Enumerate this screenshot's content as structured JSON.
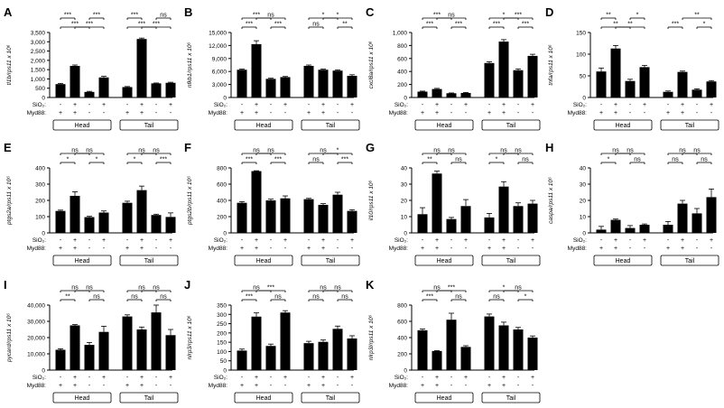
{
  "figure": {
    "row_labels": [
      "SiO₂:",
      "Myd88:"
    ],
    "group_labels": [
      "Head",
      "Tail"
    ],
    "conditions": [
      {
        "sio2": "-",
        "myd88": "+"
      },
      {
        "sio2": "+",
        "myd88": "+"
      },
      {
        "sio2": "-",
        "myd88": "-"
      },
      {
        "sio2": "+",
        "myd88": "-"
      }
    ],
    "sig_labels": {
      "ns": "ns",
      "s1": "*",
      "s2": "**",
      "s3": "***"
    }
  },
  "chart_data": [
    {
      "type": "bar",
      "letter": "A",
      "ylabel": "tl1b/rps11 x 10⁶",
      "ylim": [
        0,
        3500
      ],
      "yticks": [
        0,
        500,
        1000,
        1500,
        2000,
        2500,
        3000,
        3500
      ],
      "categories": [
        "Head 1",
        "Head 2",
        "Head 3",
        "Head 4",
        "Tail 1",
        "Tail 2",
        "Tail 3",
        "Tail 4"
      ],
      "values": [
        720,
        1700,
        300,
        1080,
        560,
        3150,
        760,
        790
      ],
      "errors": [
        40,
        50,
        30,
        60,
        30,
        50,
        20,
        30
      ],
      "sig": [
        {
          "a": 0,
          "b": 2,
          "label": "***",
          "tier": 0
        },
        {
          "a": 1,
          "b": 3,
          "label": "***",
          "tier": 0
        },
        {
          "a": 0,
          "b": 1,
          "label": "***",
          "tier": 1
        },
        {
          "a": 2,
          "b": 3,
          "label": "***",
          "tier": 1
        },
        {
          "a": 4,
          "b": 6,
          "label": "***",
          "tier": 0
        },
        {
          "a": 5,
          "b": 7,
          "label": "***",
          "tier": 0
        },
        {
          "a": 4,
          "b": 5,
          "label": "***",
          "tier": 1
        },
        {
          "a": 6,
          "b": 7,
          "label": "ns",
          "tier": 1
        }
      ]
    },
    {
      "type": "bar",
      "letter": "B",
      "ylabel": "nfkb1/rps11 x 10⁶",
      "ylim": [
        0,
        15000
      ],
      "yticks": [
        0,
        3000,
        6000,
        9000,
        12000,
        15000
      ],
      "categories": [
        "Head 1",
        "Head 2",
        "Head 3",
        "Head 4",
        "Tail 1",
        "Tail 2",
        "Tail 3",
        "Tail 4"
      ],
      "values": [
        6400,
        12300,
        4300,
        4700,
        7300,
        6400,
        6200,
        5000
      ],
      "errors": [
        150,
        800,
        150,
        150,
        200,
        150,
        150,
        250
      ],
      "sig": [
        {
          "a": 0,
          "b": 1,
          "label": "***",
          "tier": 0
        },
        {
          "a": 2,
          "b": 3,
          "label": "***",
          "tier": 0
        },
        {
          "a": 0,
          "b": 2,
          "label": "***",
          "tier": 1
        },
        {
          "a": 1,
          "b": 3,
          "label": "ns",
          "tier": 1
        },
        {
          "a": 4,
          "b": 5,
          "label": "ns",
          "tier": 0
        },
        {
          "a": 6,
          "b": 7,
          "label": "**",
          "tier": 0
        },
        {
          "a": 4,
          "b": 6,
          "label": "*",
          "tier": 1
        },
        {
          "a": 5,
          "b": 7,
          "label": "*",
          "tier": 1
        }
      ]
    },
    {
      "type": "bar",
      "letter": "C",
      "ylabel": "cxcl8a/rps11 x 10⁶",
      "ylim": [
        0,
        1000
      ],
      "yticks": [
        0,
        200,
        400,
        600,
        800,
        1000
      ],
      "categories": [
        "Head 1",
        "Head 2",
        "Head 3",
        "Head 4",
        "Tail 1",
        "Tail 2",
        "Tail 3",
        "Tail 4"
      ],
      "values": [
        90,
        130,
        65,
        70,
        530,
        860,
        420,
        640
      ],
      "errors": [
        8,
        10,
        5,
        8,
        20,
        30,
        20,
        25
      ],
      "sig": [
        {
          "a": 0,
          "b": 1,
          "label": "***",
          "tier": 0
        },
        {
          "a": 2,
          "b": 3,
          "label": "***",
          "tier": 0
        },
        {
          "a": 0,
          "b": 2,
          "label": "***",
          "tier": 1
        },
        {
          "a": 1,
          "b": 3,
          "label": "ns",
          "tier": 1
        },
        {
          "a": 4,
          "b": 5,
          "label": "***",
          "tier": 0
        },
        {
          "a": 6,
          "b": 7,
          "label": "***",
          "tier": 0
        },
        {
          "a": 4,
          "b": 6,
          "label": "*",
          "tier": 1
        },
        {
          "a": 5,
          "b": 7,
          "label": "***",
          "tier": 1
        }
      ]
    },
    {
      "type": "bar",
      "letter": "D",
      "ylabel": "tnfa/rps11 x 10⁶",
      "ylim": [
        0,
        150
      ],
      "yticks": [
        0,
        50,
        100,
        150
      ],
      "categories": [
        "Head 1",
        "Head 2",
        "Head 3",
        "Head 4",
        "Tail 1",
        "Tail 2",
        "Tail 3",
        "Tail 4"
      ],
      "values": [
        60,
        113,
        38,
        70,
        13,
        59,
        18,
        37
      ],
      "errors": [
        8,
        7,
        4,
        4,
        2,
        2,
        2,
        2
      ],
      "sig": [
        {
          "a": 0,
          "b": 2,
          "label": "**",
          "tier": 0
        },
        {
          "a": 1,
          "b": 3,
          "label": "**",
          "tier": 0
        },
        {
          "a": 0,
          "b": 1,
          "label": "**",
          "tier": 1
        },
        {
          "a": 2,
          "b": 3,
          "label": "*",
          "tier": 1
        },
        {
          "a": 4,
          "b": 5,
          "label": "***",
          "tier": 0
        },
        {
          "a": 6,
          "b": 7,
          "label": "*",
          "tier": 0
        },
        {
          "a": 5,
          "b": 7,
          "label": "**",
          "tier": 1
        }
      ]
    },
    {
      "type": "bar",
      "letter": "E",
      "ylabel": "ptgs2a/rps11 x 10⁶",
      "ylim": [
        0,
        400
      ],
      "yticks": [
        0,
        100,
        200,
        300,
        400
      ],
      "categories": [
        "Head 1",
        "Head 2",
        "Head 3",
        "Head 4",
        "Tail 1",
        "Tail 2",
        "Tail 3",
        "Tail 4"
      ],
      "values": [
        135,
        228,
        97,
        125,
        185,
        263,
        110,
        98
      ],
      "errors": [
        5,
        25,
        5,
        10,
        10,
        25,
        5,
        25
      ],
      "sig": [
        {
          "a": 0,
          "b": 1,
          "label": "*",
          "tier": 0
        },
        {
          "a": 2,
          "b": 3,
          "label": "*",
          "tier": 0
        },
        {
          "a": 0,
          "b": 2,
          "label": "ns",
          "tier": 1
        },
        {
          "a": 1,
          "b": 3,
          "label": "ns",
          "tier": 1
        },
        {
          "a": 4,
          "b": 5,
          "label": "*",
          "tier": 0
        },
        {
          "a": 6,
          "b": 7,
          "label": "***",
          "tier": 0
        },
        {
          "a": 4,
          "b": 6,
          "label": "ns",
          "tier": 1
        },
        {
          "a": 5,
          "b": 7,
          "label": "ns",
          "tier": 1
        }
      ]
    },
    {
      "type": "bar",
      "letter": "F",
      "ylabel": "ptgs2b/rps11 x 10⁶",
      "ylim": [
        0,
        800
      ],
      "yticks": [
        0,
        200,
        400,
        600,
        800
      ],
      "categories": [
        "Head 1",
        "Head 2",
        "Head 3",
        "Head 4",
        "Tail 1",
        "Tail 2",
        "Tail 3",
        "Tail 4"
      ],
      "values": [
        370,
        760,
        400,
        425,
        415,
        345,
        470,
        270
      ],
      "errors": [
        15,
        5,
        15,
        30,
        10,
        15,
        30,
        15
      ],
      "sig": [
        {
          "a": 0,
          "b": 1,
          "label": "***",
          "tier": 0
        },
        {
          "a": 2,
          "b": 3,
          "label": "***",
          "tier": 0
        },
        {
          "a": 0,
          "b": 2,
          "label": "ns",
          "tier": 1
        },
        {
          "a": 1,
          "b": 3,
          "label": "ns",
          "tier": 1
        },
        {
          "a": 4,
          "b": 5,
          "label": "ns",
          "tier": 0
        },
        {
          "a": 6,
          "b": 7,
          "label": "***",
          "tier": 0
        },
        {
          "a": 4,
          "b": 6,
          "label": "ns",
          "tier": 1
        },
        {
          "a": 5,
          "b": 7,
          "label": "*",
          "tier": 1
        }
      ]
    },
    {
      "type": "bar",
      "letter": "G",
      "ylabel": "il10/rps11 x 10⁶",
      "ylim": [
        0,
        40
      ],
      "yticks": [
        0,
        10,
        20,
        30,
        40
      ],
      "categories": [
        "Head 1",
        "Head 2",
        "Head 3",
        "Head 4",
        "Tail 1",
        "Tail 2",
        "Tail 3",
        "Tail 4"
      ],
      "values": [
        11.5,
        36.5,
        8.5,
        16.5,
        9.5,
        28.5,
        16.5,
        18
      ],
      "errors": [
        4,
        1.5,
        1,
        4,
        2.5,
        3,
        2,
        2
      ],
      "sig": [
        {
          "a": 0,
          "b": 1,
          "label": "**",
          "tier": 0
        },
        {
          "a": 2,
          "b": 3,
          "label": "ns",
          "tier": 0
        },
        {
          "a": 0,
          "b": 2,
          "label": "ns",
          "tier": 1
        },
        {
          "a": 1,
          "b": 3,
          "label": "ns",
          "tier": 1
        },
        {
          "a": 4,
          "b": 5,
          "label": "*",
          "tier": 0
        },
        {
          "a": 6,
          "b": 7,
          "label": "ns",
          "tier": 0
        },
        {
          "a": 4,
          "b": 6,
          "label": "ns",
          "tier": 1
        },
        {
          "a": 5,
          "b": 7,
          "label": "ns",
          "tier": 1
        }
      ]
    },
    {
      "type": "bar",
      "letter": "H",
      "ylabel": "caspa/rps11 x 10⁶",
      "ylim": [
        0,
        40
      ],
      "yticks": [
        0,
        10,
        20,
        30,
        40
      ],
      "categories": [
        "Head 1",
        "Head 2",
        "Head 3",
        "Head 4",
        "Tail 1",
        "Tail 2",
        "Tail 3",
        "Tail 4"
      ],
      "values": [
        2,
        8,
        3,
        5,
        5,
        18,
        12,
        22
      ],
      "errors": [
        2,
        0.5,
        1.5,
        0.5,
        2,
        2,
        3,
        5
      ],
      "sig": [
        {
          "a": 0,
          "b": 1,
          "label": "*",
          "tier": 0
        },
        {
          "a": 2,
          "b": 3,
          "label": "ns",
          "tier": 0
        },
        {
          "a": 0,
          "b": 2,
          "label": "ns",
          "tier": 1
        },
        {
          "a": 1,
          "b": 3,
          "label": "ns",
          "tier": 1
        },
        {
          "a": 4,
          "b": 5,
          "label": "ns",
          "tier": 0
        },
        {
          "a": 6,
          "b": 7,
          "label": "ns",
          "tier": 0
        },
        {
          "a": 4,
          "b": 6,
          "label": "ns",
          "tier": 1
        },
        {
          "a": 5,
          "b": 7,
          "label": "ns",
          "tier": 1
        }
      ]
    },
    {
      "type": "bar",
      "letter": "I",
      "ylabel": "pycard/rps11 x 10⁶",
      "ylim": [
        0,
        40000
      ],
      "yticks": [
        0,
        10000,
        20000,
        30000,
        40000
      ],
      "categories": [
        "Head 1",
        "Head 2",
        "Head 3",
        "Head 4",
        "Tail 1",
        "Tail 2",
        "Tail 3",
        "Tail 4"
      ],
      "values": [
        12500,
        27500,
        15500,
        23500,
        33000,
        25000,
        35500,
        21500
      ],
      "errors": [
        600,
        500,
        1500,
        3500,
        1000,
        1500,
        4500,
        3500
      ],
      "sig": [
        {
          "a": 0,
          "b": 1,
          "label": "**",
          "tier": 0
        },
        {
          "a": 2,
          "b": 3,
          "label": "ns",
          "tier": 0
        },
        {
          "a": 0,
          "b": 2,
          "label": "ns",
          "tier": 1
        },
        {
          "a": 1,
          "b": 3,
          "label": "ns",
          "tier": 1
        },
        {
          "a": 4,
          "b": 5,
          "label": "ns",
          "tier": 0
        },
        {
          "a": 6,
          "b": 7,
          "label": "ns",
          "tier": 0
        },
        {
          "a": 4,
          "b": 6,
          "label": "ns",
          "tier": 1
        },
        {
          "a": 5,
          "b": 7,
          "label": "ns",
          "tier": 1
        }
      ]
    },
    {
      "type": "bar",
      "letter": "J",
      "ylabel": "nlrp3/rps11 x 10⁶",
      "ylim": [
        0,
        350
      ],
      "yticks": [
        0,
        50,
        100,
        150,
        200,
        250,
        300,
        350
      ],
      "categories": [
        "Head 1",
        "Head 2",
        "Head 3",
        "Head 4",
        "Tail 1",
        "Tail 2",
        "Tail 3",
        "Tail 4"
      ],
      "values": [
        105,
        288,
        130,
        310,
        145,
        152,
        222,
        170
      ],
      "errors": [
        8,
        20,
        10,
        10,
        10,
        10,
        15,
        15
      ],
      "sig": [
        {
          "a": 0,
          "b": 1,
          "label": "***",
          "tier": 0
        },
        {
          "a": 2,
          "b": 3,
          "label": "ns",
          "tier": 0
        },
        {
          "a": 0,
          "b": 2,
          "label": "ns",
          "tier": 1
        },
        {
          "a": 1,
          "b": 3,
          "label": "***",
          "tier": 1
        },
        {
          "a": 4,
          "b": 5,
          "label": "ns",
          "tier": 0
        },
        {
          "a": 6,
          "b": 7,
          "label": "ns",
          "tier": 0
        },
        {
          "a": 4,
          "b": 6,
          "label": "ns",
          "tier": 1
        },
        {
          "a": 5,
          "b": 7,
          "label": "ns",
          "tier": 1
        }
      ]
    },
    {
      "type": "bar",
      "letter": "K",
      "ylabel": "nlrp3l/rps11 x 10⁶",
      "ylim": [
        0,
        800
      ],
      "yticks": [
        0,
        200,
        400,
        600,
        800
      ],
      "categories": [
        "Head 1",
        "Head 2",
        "Head 3",
        "Head 4",
        "Tail 1",
        "Tail 2",
        "Tail 3",
        "Tail 4"
      ],
      "values": [
        490,
        235,
        620,
        285,
        660,
        550,
        500,
        400
      ],
      "errors": [
        15,
        5,
        80,
        15,
        30,
        40,
        25,
        20
      ],
      "sig": [
        {
          "a": 0,
          "b": 1,
          "label": "***",
          "tier": 0
        },
        {
          "a": 2,
          "b": 3,
          "label": "ns",
          "tier": 0
        },
        {
          "a": 0,
          "b": 2,
          "label": "ns",
          "tier": 1
        },
        {
          "a": 1,
          "b": 3,
          "label": "***",
          "tier": 1
        },
        {
          "a": 4,
          "b": 5,
          "label": "ns",
          "tier": 0
        },
        {
          "a": 6,
          "b": 7,
          "label": "*",
          "tier": 0
        },
        {
          "a": 4,
          "b": 6,
          "label": "*",
          "tier": 1
        },
        {
          "a": 5,
          "b": 7,
          "label": "ns",
          "tier": 1
        }
      ]
    }
  ]
}
